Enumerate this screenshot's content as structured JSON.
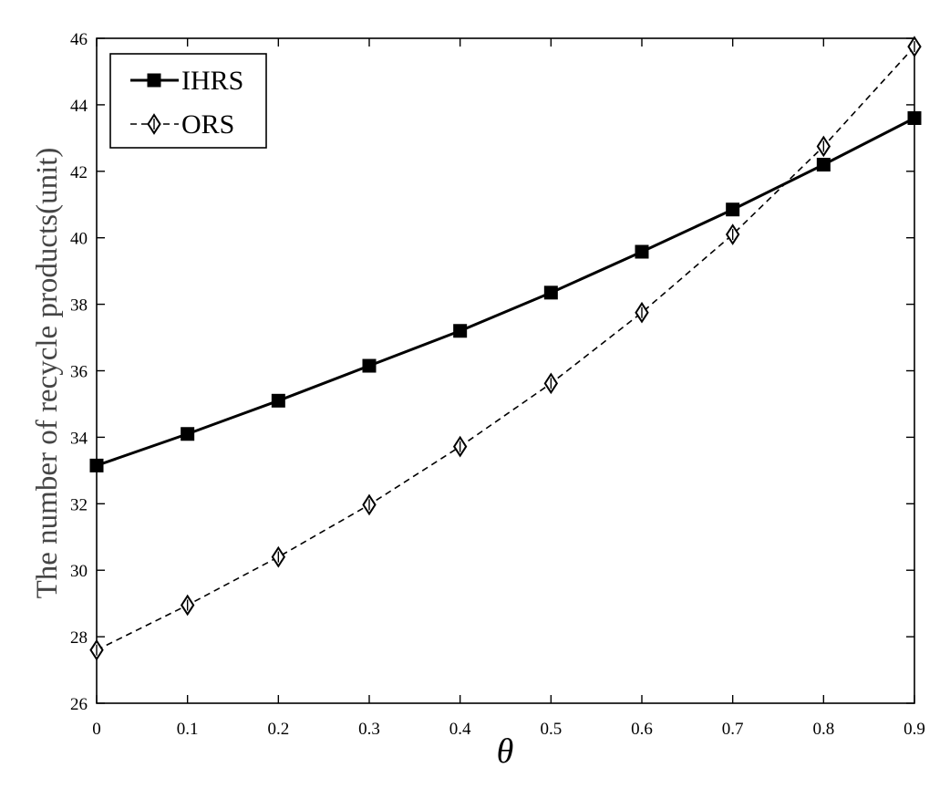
{
  "chart_data": {
    "type": "line",
    "xlabel": "θ",
    "ylabel": "The number of recycle products(unit)",
    "xlim": [
      0,
      0.9
    ],
    "ylim": [
      26,
      46
    ],
    "x": [
      0,
      0.1,
      0.2,
      0.3,
      0.4,
      0.5,
      0.6,
      0.7,
      0.8,
      0.9
    ],
    "x_tick_labels": [
      "0",
      "0.1",
      "0.2",
      "0.3",
      "0.4",
      "0.5",
      "0.6",
      "0.7",
      "0.8",
      "0.9"
    ],
    "y_ticks": [
      26,
      28,
      30,
      32,
      34,
      36,
      38,
      40,
      42,
      44,
      46
    ],
    "grid": false,
    "legend_position": "top-left",
    "series": [
      {
        "name": "IHRS",
        "line_style": "solid",
        "marker": "square",
        "color": "#000000",
        "values": [
          33.15,
          34.1,
          35.1,
          36.15,
          37.2,
          38.35,
          39.58,
          40.85,
          42.2,
          43.6
        ]
      },
      {
        "name": "ORS",
        "line_style": "dashed",
        "marker": "diamond-open",
        "color": "#000000",
        "values": [
          27.6,
          28.95,
          30.4,
          31.97,
          33.72,
          35.62,
          37.75,
          40.1,
          42.75,
          45.75
        ]
      }
    ]
  }
}
